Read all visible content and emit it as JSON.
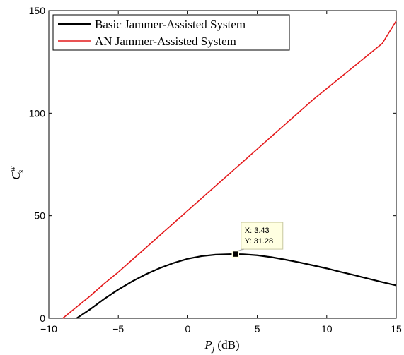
{
  "chart_data": {
    "type": "line",
    "xlabel": "P_j (dB)",
    "ylabel": "C_s^w",
    "xlim": [
      -10,
      15
    ],
    "ylim": [
      0,
      150
    ],
    "xticks": [
      -10,
      -5,
      0,
      5,
      10,
      15
    ],
    "yticks": [
      0,
      50,
      100,
      150
    ],
    "xtick_labels": [
      "−10",
      "−5",
      "0",
      "5",
      "10",
      "15"
    ],
    "ytick_labels": [
      "0",
      "50",
      "100",
      "150"
    ],
    "grid": false,
    "legend_position": "top-left",
    "series": [
      {
        "name": "Basic Jammer-Assisted System",
        "color": "#000000",
        "x": [
          -8.0,
          -7,
          -6,
          -5,
          -4,
          -3,
          -2,
          -1,
          0,
          1,
          2,
          3,
          3.43,
          4,
          5,
          6,
          7,
          8,
          9,
          10,
          11,
          12,
          13,
          14,
          15
        ],
        "y": [
          0,
          4.5,
          9.5,
          14,
          18,
          21.5,
          24.5,
          27,
          29,
          30.3,
          31.0,
          31.25,
          31.28,
          31.2,
          30.7,
          29.8,
          28.6,
          27.3,
          25.8,
          24.3,
          22.6,
          21.0,
          19.3,
          17.6,
          16.0
        ]
      },
      {
        "name": "AN Jammer-Assisted System",
        "color": "#e41a1c",
        "x": [
          -9.0,
          -8,
          -7,
          -6,
          -5,
          -4,
          -3,
          -2,
          -1,
          0,
          1,
          2,
          3,
          4,
          5,
          6,
          7,
          8,
          9,
          10,
          11,
          12,
          13,
          14,
          15
        ],
        "y": [
          0,
          5.5,
          11,
          17,
          22.5,
          28.5,
          34.5,
          40.5,
          46.5,
          52.5,
          58.5,
          64.5,
          70.5,
          76.5,
          82.5,
          88.5,
          94.5,
          100.5,
          106.5,
          112,
          117.5,
          123,
          128.5,
          134,
          145
        ]
      }
    ],
    "annotation": {
      "x": 3.43,
      "y": 31.28,
      "label_x": "X: 3.43",
      "label_y": "Y: 31.28"
    }
  }
}
